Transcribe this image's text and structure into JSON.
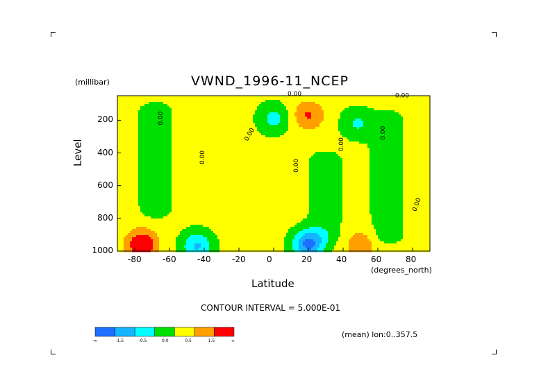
{
  "title": "VWND_1996-11_NCEP",
  "y_unit": "(millibar)",
  "x_unit": "(degrees_north)",
  "contour_interval": "CONTOUR INTERVAL = 5.000E-01",
  "mean_label": "(mean) lon:0..357.5",
  "contour_label_text": "0.00",
  "chart_data": {
    "type": "contour",
    "title": "VWND_1996-11_NCEP",
    "xlabel": "Latitude",
    "ylabel": "Level",
    "x_unit": "degrees_north",
    "y_unit": "millibar",
    "xlim": [
      -90,
      90
    ],
    "ylim": [
      1000,
      50
    ],
    "x_ticks": [
      -80,
      -60,
      -40,
      -20,
      0,
      20,
      40,
      60,
      80
    ],
    "y_ticks": [
      200,
      400,
      600,
      800,
      1000
    ],
    "x_tick_labels": [
      "-80",
      "-60",
      "-40",
      "-20",
      "0",
      "20",
      "40",
      "60",
      "80"
    ],
    "y_tick_labels": [
      "200",
      "400",
      "600",
      "800",
      "1000"
    ],
    "contour_interval": 0.5,
    "colorbar": {
      "colors": [
        "#1e6eff",
        "#14b4ff",
        "#00ffff",
        "#00e000",
        "#ffff00",
        "#ffa000",
        "#ff0000"
      ],
      "labels": [
        "-∞",
        "-1.5",
        "-0.5",
        "0.0",
        "0.5",
        "1.5",
        "∞"
      ],
      "breaks": [
        -1.5,
        -1.0,
        -0.5,
        0.0,
        0.5,
        1.0
      ]
    },
    "features": [
      {
        "kind": "min",
        "lat": 20,
        "p": 960,
        "value": -1.8
      },
      {
        "kind": "min",
        "lat": -44,
        "p": 970,
        "value": -1.2
      },
      {
        "kind": "min",
        "lat": 0,
        "p": 190,
        "value": -0.8
      },
      {
        "kind": "min",
        "lat": 48,
        "p": 220,
        "value": -0.7
      },
      {
        "kind": "max",
        "lat": -76,
        "p": 960,
        "value": 1.4
      },
      {
        "kind": "max",
        "lat": 20,
        "p": 170,
        "value": 0.9
      },
      {
        "kind": "max",
        "lat": 50,
        "p": 960,
        "value": 0.7
      },
      {
        "kind": "neg_band",
        "lat": -68,
        "p_top": 150,
        "p_bottom": 740
      },
      {
        "kind": "neg_band",
        "lat": 65,
        "p_top": 200,
        "p_bottom": 900
      },
      {
        "kind": "neg_band",
        "lat": 30,
        "p_top": 450,
        "p_bottom": 900
      }
    ]
  }
}
